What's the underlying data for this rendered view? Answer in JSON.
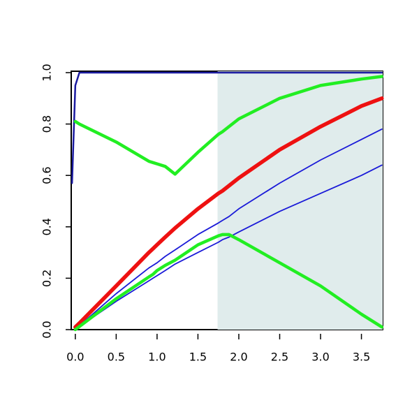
{
  "chart_data": {
    "type": "line",
    "x": [
      -0.04,
      0,
      0.05,
      0.5,
      0.9,
      0.95,
      1.0,
      1.1,
      1.22,
      1.5,
      1.75,
      1.8,
      1.88,
      2.0,
      2.5,
      3.0,
      3.5,
      3.75
    ],
    "shaded_region": [
      1.74,
      3.76
    ],
    "shade_color": "#e0ecec",
    "series": [
      {
        "color": "#1a1aa0",
        "width": 2.5,
        "values": [
          0.57,
          0.95,
          1.0,
          1.0,
          1.0,
          1.0,
          1.0,
          1.0,
          1.0,
          1.0,
          1.0,
          1.0,
          1.0,
          1.0,
          1.0,
          1.0,
          1.0,
          1.0
        ]
      },
      {
        "color": "#ee1111",
        "width": 5.5,
        "values": [
          null,
          0.01,
          0.025,
          0.17,
          0.3,
          0.315,
          0.33,
          0.36,
          0.395,
          0.47,
          0.53,
          0.54,
          0.56,
          0.59,
          0.7,
          0.79,
          0.87,
          0.9
        ]
      },
      {
        "color": "#1a1ad8",
        "width": 1.8,
        "values": [
          null,
          0,
          0.015,
          0.14,
          0.24,
          0.25,
          0.26,
          0.285,
          0.31,
          0.37,
          0.415,
          0.425,
          0.44,
          0.47,
          0.57,
          0.66,
          0.74,
          0.78
        ]
      },
      {
        "color": "#1a1ad8",
        "width": 1.8,
        "values": [
          null,
          0,
          0.012,
          0.11,
          0.19,
          0.2,
          0.21,
          0.23,
          0.255,
          0.3,
          0.34,
          0.35,
          0.36,
          0.38,
          0.46,
          0.53,
          0.6,
          0.64
        ]
      },
      {
        "color": "#22ee22",
        "width": 4.5,
        "values": [
          null,
          0.81,
          0.8,
          0.73,
          0.655,
          0.65,
          0.645,
          0.635,
          0.605,
          0.69,
          0.76,
          0.77,
          0.79,
          0.82,
          0.9,
          0.95,
          0.975,
          0.985
        ]
      },
      {
        "color": "#22ee22",
        "width": 4.5,
        "values": [
          null,
          0,
          0.012,
          0.12,
          0.205,
          0.215,
          0.23,
          0.25,
          0.27,
          0.33,
          0.365,
          0.37,
          0.37,
          0.35,
          0.26,
          0.17,
          0.06,
          0.01
        ]
      }
    ],
    "xlim": [
      -0.05,
      3.76
    ],
    "ylim": [
      0,
      1
    ],
    "xticks": [
      {
        "value": 0,
        "label": "0.0"
      },
      0.5,
      {
        "value": 1,
        "label": "1.0"
      },
      1.5,
      {
        "value": 2,
        "label": "2.0"
      },
      2.5,
      {
        "value": 3,
        "label": "3.0"
      },
      3.5
    ],
    "yticks": [
      {
        "value": 0,
        "label": "0.0"
      },
      0.2,
      0.4,
      0.6,
      0.8,
      {
        "value": 1,
        "label": "1.0"
      }
    ]
  }
}
